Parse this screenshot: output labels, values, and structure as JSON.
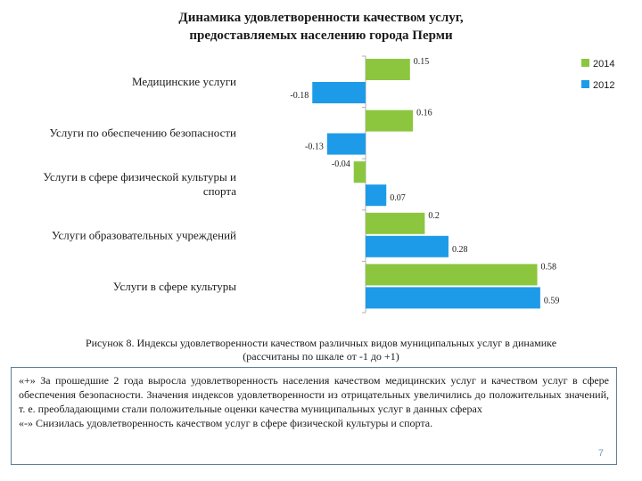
{
  "chart_data": {
    "type": "bar",
    "orientation": "horizontal",
    "title": "Динамика удовлетворенности качеством услуг, предоставляемых населению города Перми",
    "title_lines": [
      "Динамика удовлетворенности качеством услуг,",
      "предоставляемых населению города Перми"
    ],
    "categories": [
      [
        "Медицинские услуги"
      ],
      [
        "Услуги по обеспечению безопасности"
      ],
      [
        "Услуги в сфере физической культуры и",
        "спорта"
      ],
      [
        "Услуги образовательных учреждений"
      ],
      [
        "Услуги в сфере культуры"
      ]
    ],
    "series": [
      {
        "name": "2014",
        "color": "#8cc63f",
        "values": [
          0.15,
          0.16,
          -0.04,
          0.2,
          0.58
        ],
        "labels": [
          "0.15",
          "0.16",
          "-0.04",
          "0.2",
          "0.58"
        ]
      },
      {
        "name": "2012",
        "color": "#1e9be8",
        "values": [
          -0.18,
          -0.13,
          0.07,
          0.28,
          0.59
        ],
        "labels": [
          "-0.18",
          "-0.13",
          "0.07",
          "0.28",
          "0.59"
        ]
      }
    ],
    "xlim": [
      -0.2,
      0.6
    ],
    "grid": false,
    "legend": "top-right"
  },
  "caption": {
    "line1": "Рисунок 8. Индексы удовлетворенности качеством различных видов муниципальных услуг в динамике",
    "line2": "(рассчитаны по шкале от -1 до +1)"
  },
  "note": {
    "paragraph1": "«+» За прошедшие 2 года выросла удовлетворенность населения качеством медицинских услуг и качеством услуг в сфере обеспечения безопасности. Значения индексов удовлетворенности из отрицательных увеличились до положительных значений, т. е. преобладающими стали положительные оценки качества муниципальных услуг в данных сферах",
    "paragraph2": "«-» Снизилась удовлетворенность качеством услуг в сфере физической культуры и спорта."
  },
  "page_number": "7"
}
